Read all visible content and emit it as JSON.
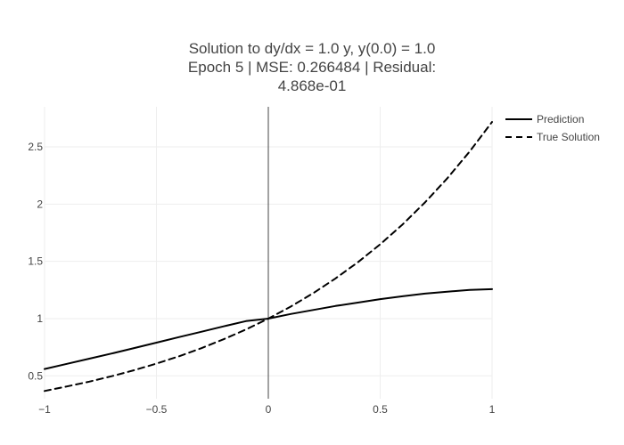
{
  "chart_data": {
    "type": "line",
    "title_lines": [
      "Solution to dy/dx = 1.0 y, y(0.0) = 1.0",
      "Epoch 5 | MSE: 0.266484 | Residual:",
      "4.868e-01"
    ],
    "xlabel": "",
    "ylabel": "",
    "xlim": [
      -1,
      1
    ],
    "ylim": [
      0.3,
      2.85
    ],
    "x_ticks": [
      -1,
      -0.5,
      0,
      0.5,
      1
    ],
    "x_tick_labels": [
      "−1",
      "−0.5",
      "0",
      "0.5",
      "1"
    ],
    "y_ticks": [
      0.5,
      1,
      1.5,
      2,
      2.5
    ],
    "y_tick_labels": [
      "0.5",
      "1",
      "1.5",
      "2",
      "2.5"
    ],
    "grid": true,
    "legend_position": "top-right",
    "series": [
      {
        "name": "Prediction",
        "dash": "solid",
        "color": "#000000",
        "x": [
          -1,
          -0.9,
          -0.8,
          -0.7,
          -0.6,
          -0.5,
          -0.4,
          -0.3,
          -0.2,
          -0.1,
          0,
          0.1,
          0.2,
          0.3,
          0.4,
          0.5,
          0.6,
          0.7,
          0.8,
          0.9,
          1
        ],
        "y": [
          0.56,
          0.605,
          0.65,
          0.695,
          0.742,
          0.79,
          0.838,
          0.885,
          0.932,
          0.978,
          1.0,
          1.04,
          1.075,
          1.11,
          1.14,
          1.17,
          1.195,
          1.218,
          1.235,
          1.25,
          1.257
        ]
      },
      {
        "name": "True Solution",
        "dash": "dashed",
        "color": "#000000",
        "x": [
          -1,
          -0.9,
          -0.8,
          -0.7,
          -0.6,
          -0.5,
          -0.4,
          -0.3,
          -0.2,
          -0.1,
          0,
          0.1,
          0.2,
          0.3,
          0.4,
          0.5,
          0.6,
          0.7,
          0.8,
          0.9,
          1
        ],
        "y": [
          0.368,
          0.407,
          0.449,
          0.497,
          0.549,
          0.607,
          0.67,
          0.741,
          0.819,
          0.905,
          1.0,
          1.105,
          1.221,
          1.35,
          1.492,
          1.649,
          1.822,
          2.014,
          2.226,
          2.46,
          2.718
        ]
      }
    ]
  }
}
